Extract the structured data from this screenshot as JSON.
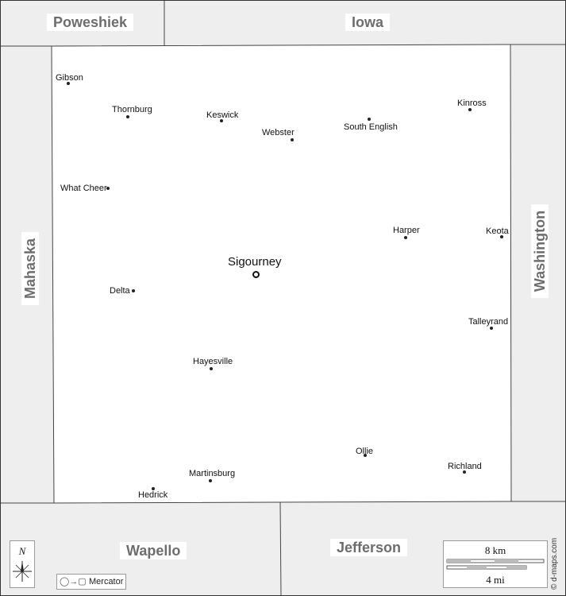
{
  "map": {
    "county_seat": "Sigourney",
    "towns": [
      {
        "key": "gibson",
        "name": "Gibson"
      },
      {
        "key": "thornburg",
        "name": "Thornburg"
      },
      {
        "key": "keswick",
        "name": "Keswick"
      },
      {
        "key": "webster",
        "name": "Webster"
      },
      {
        "key": "south-english",
        "name": "South English"
      },
      {
        "key": "kinross",
        "name": "Kinross"
      },
      {
        "key": "what-cheer",
        "name": "What Cheer"
      },
      {
        "key": "harper",
        "name": "Harper"
      },
      {
        "key": "keota",
        "name": "Keota"
      },
      {
        "key": "delta",
        "name": "Delta"
      },
      {
        "key": "talleyrand",
        "name": "Talleyrand"
      },
      {
        "key": "hayesville",
        "name": "Hayesville"
      },
      {
        "key": "ollie",
        "name": "Ollie"
      },
      {
        "key": "richland",
        "name": "Richland"
      },
      {
        "key": "martinsburg",
        "name": "Martinsburg"
      },
      {
        "key": "hedrick",
        "name": "Hedrick"
      }
    ],
    "neighbors": {
      "poweshiek": "Poweshiek",
      "iowa": "Iowa",
      "mahaska": "Mahaska",
      "washington": "Washington",
      "wapello": "Wapello",
      "jefferson": "Jefferson"
    }
  },
  "legend": {
    "compass_letter": "N",
    "compass_icon": "compass-rose-icon",
    "projection": "Mercator",
    "projection_icon": "globe-to-plane-icon",
    "scale_km": "8 km",
    "scale_mi": "4 mi"
  },
  "credit": "© d-maps.com",
  "colors": {
    "county_fill": "#ffffff",
    "neighbor_fill": "#eeeeee",
    "border": "#444444",
    "neighbor_label": "#6d6d6d"
  }
}
